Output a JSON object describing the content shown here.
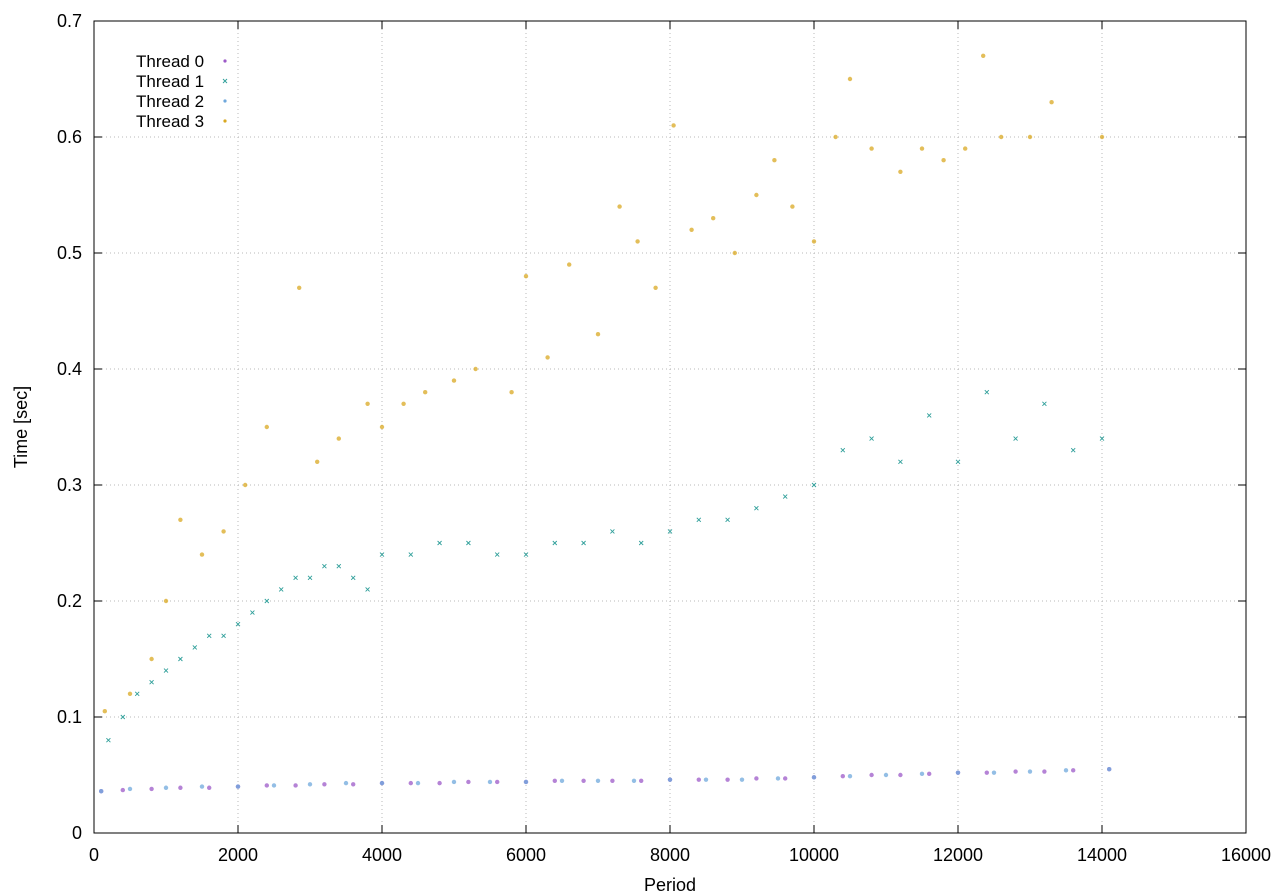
{
  "chart_data": {
    "type": "scatter",
    "title": "",
    "xlabel": "Period",
    "ylabel": "Time [sec]",
    "xlim": [
      0,
      16000
    ],
    "ylim": [
      0,
      0.7
    ],
    "x_ticks": [
      0,
      2000,
      4000,
      6000,
      8000,
      10000,
      12000,
      14000,
      16000
    ],
    "y_ticks": [
      0,
      0.1,
      0.2,
      0.3,
      0.4,
      0.5,
      0.6,
      0.7
    ],
    "x_tick_labels": [
      "0",
      "2000",
      "4000",
      "6000",
      "8000",
      "10000",
      "12000",
      "14000",
      "16000"
    ],
    "y_tick_labels": [
      "0",
      "0.1",
      "0.2",
      "0.3",
      "0.4",
      "0.5",
      "0.6",
      "0.7"
    ],
    "grid": true,
    "legend_position": "top-left",
    "series": [
      {
        "name": "Thread 0",
        "color": "#9c59c8",
        "marker": "dot",
        "x": [
          100,
          400,
          800,
          1200,
          1600,
          2000,
          2400,
          2800,
          3200,
          3600,
          4000,
          4400,
          4800,
          5200,
          5600,
          6000,
          6400,
          6800,
          7200,
          7600,
          8000,
          8400,
          8800,
          9200,
          9600,
          10000,
          10400,
          10800,
          11200,
          11600,
          12000,
          12400,
          12800,
          13200,
          13600,
          14100
        ],
        "y": [
          0.036,
          0.037,
          0.038,
          0.039,
          0.039,
          0.04,
          0.041,
          0.041,
          0.042,
          0.042,
          0.043,
          0.043,
          0.043,
          0.044,
          0.044,
          0.044,
          0.045,
          0.045,
          0.045,
          0.045,
          0.046,
          0.046,
          0.046,
          0.047,
          0.047,
          0.048,
          0.049,
          0.05,
          0.05,
          0.051,
          0.052,
          0.052,
          0.053,
          0.053,
          0.054,
          0.055
        ]
      },
      {
        "name": "Thread 1",
        "color": "#2f9f9a",
        "marker": "x",
        "x": [
          200,
          400,
          600,
          800,
          1000,
          1200,
          1400,
          1600,
          1800,
          2000,
          2200,
          2400,
          2600,
          2800,
          3000,
          3200,
          3400,
          3600,
          3800,
          4000,
          4400,
          4800,
          5200,
          5600,
          6000,
          6400,
          6800,
          7200,
          7600,
          8000,
          8400,
          8800,
          9200,
          9600,
          10000,
          10400,
          10800,
          11200,
          11600,
          12000,
          12400,
          12800,
          13200,
          13600,
          14000
        ],
        "y": [
          0.08,
          0.1,
          0.12,
          0.13,
          0.14,
          0.15,
          0.16,
          0.17,
          0.17,
          0.18,
          0.19,
          0.2,
          0.21,
          0.22,
          0.22,
          0.23,
          0.23,
          0.22,
          0.21,
          0.24,
          0.24,
          0.25,
          0.25,
          0.24,
          0.24,
          0.25,
          0.25,
          0.26,
          0.25,
          0.26,
          0.27,
          0.27,
          0.28,
          0.29,
          0.3,
          0.33,
          0.34,
          0.32,
          0.36,
          0.32,
          0.38,
          0.34,
          0.37,
          0.33,
          0.34
        ]
      },
      {
        "name": "Thread 2",
        "color": "#6fa8dc",
        "marker": "dot",
        "x": [
          100,
          500,
          1000,
          1500,
          2000,
          2500,
          3000,
          3500,
          4000,
          4500,
          5000,
          5500,
          6000,
          6500,
          7000,
          7500,
          8000,
          8500,
          9000,
          9500,
          10000,
          10500,
          11000,
          11500,
          12000,
          12500,
          13000,
          13500,
          14100
        ],
        "y": [
          0.036,
          0.038,
          0.039,
          0.04,
          0.04,
          0.041,
          0.042,
          0.043,
          0.043,
          0.043,
          0.044,
          0.044,
          0.044,
          0.045,
          0.045,
          0.045,
          0.046,
          0.046,
          0.046,
          0.047,
          0.048,
          0.049,
          0.05,
          0.051,
          0.052,
          0.052,
          0.053,
          0.054,
          0.055
        ]
      },
      {
        "name": "Thread 3",
        "color": "#d9a821",
        "marker": "dot",
        "x": [
          150,
          500,
          800,
          1000,
          1200,
          1500,
          1800,
          2100,
          2400,
          2850,
          3100,
          3400,
          3800,
          4000,
          4300,
          4600,
          5000,
          5300,
          5800,
          6000,
          6300,
          6600,
          7000,
          7300,
          7550,
          7800,
          8050,
          8300,
          8600,
          8900,
          9200,
          9450,
          9700,
          10000,
          10300,
          10500,
          10800,
          11200,
          11500,
          11800,
          12100,
          12350,
          12600,
          13000,
          13300,
          14000
        ],
        "y": [
          0.105,
          0.12,
          0.15,
          0.2,
          0.27,
          0.24,
          0.26,
          0.3,
          0.35,
          0.47,
          0.32,
          0.34,
          0.37,
          0.35,
          0.37,
          0.38,
          0.39,
          0.4,
          0.38,
          0.48,
          0.41,
          0.49,
          0.43,
          0.54,
          0.51,
          0.47,
          0.61,
          0.52,
          0.53,
          0.5,
          0.55,
          0.58,
          0.54,
          0.51,
          0.6,
          0.65,
          0.59,
          0.57,
          0.59,
          0.58,
          0.59,
          0.67,
          0.6,
          0.6,
          0.63,
          0.6
        ]
      }
    ]
  }
}
